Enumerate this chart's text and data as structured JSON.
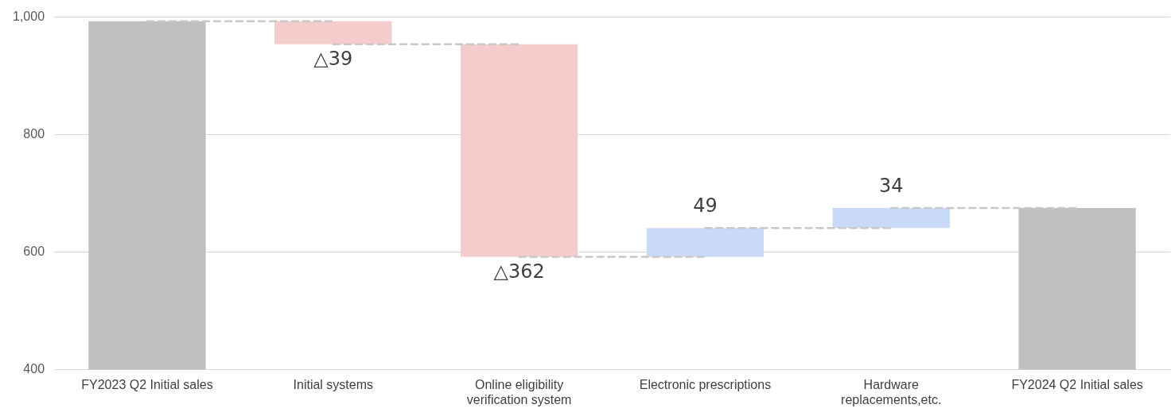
{
  "chart_data": {
    "type": "bar",
    "categories": [
      "FY2023 Q2 Initial sales",
      "Initial systems",
      "Online eligibility\nverification system",
      "Electronic prescriptions",
      "Hardware\nreplacements,etc.",
      "FY2024 Q2 Initial sales"
    ],
    "values": [
      993,
      -39,
      -362,
      49,
      34,
      675
    ],
    "base": [
      0,
      993,
      954,
      592,
      641,
      0
    ],
    "colors": [
      "#bfbfbf",
      "#f4cccc",
      "#f4cccc",
      "#c9daf8",
      "#c9daf8",
      "#bfbfbf"
    ],
    "value_labels": [
      null,
      "△39",
      "△362",
      "49",
      "34",
      null
    ],
    "ylim": [
      400,
      1000
    ],
    "yticks": [
      400,
      600,
      800,
      {
        "value": 1000,
        "label": "1,000"
      }
    ],
    "series": [
      {
        "type": "line",
        "color": "#c8c8c8",
        "line_style": "dashed",
        "marker": "none",
        "values": [
          993,
          993,
          null,
          null,
          null,
          null
        ]
      },
      {
        "type": "line",
        "color": "#c8c8c8",
        "line_style": "dashed",
        "marker": "none",
        "values": [
          null,
          954,
          954,
          null,
          null,
          null
        ]
      },
      {
        "type": "line",
        "color": "#c8c8c8",
        "line_style": "dashed",
        "marker": "none",
        "values": [
          null,
          null,
          592,
          592,
          null,
          null
        ]
      },
      {
        "type": "line",
        "color": "#c8c8c8",
        "line_style": "dashed",
        "marker": "none",
        "values": [
          null,
          null,
          null,
          641,
          641,
          null
        ]
      },
      {
        "type": "line",
        "color": "#c8c8c8",
        "line_style": "dashed",
        "marker": "none",
        "values": [
          null,
          null,
          null,
          null,
          675,
          675
        ]
      }
    ],
    "grid": "y"
  }
}
